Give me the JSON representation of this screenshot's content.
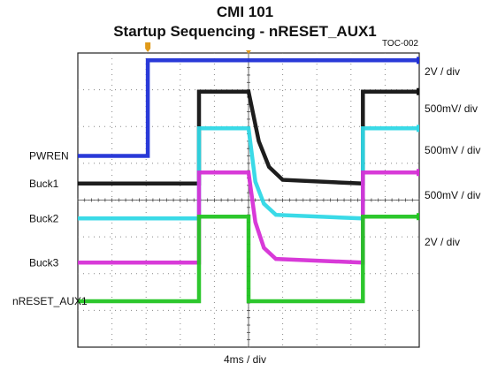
{
  "chart_data": {
    "type": "line",
    "title": "CMI  101",
    "subtitle": "Startup Sequencing - nRESET_AUX1",
    "tag": "TOC-002",
    "xlabel": "4ms / div",
    "x_divisions": 10,
    "y_divisions": 8,
    "grid": true,
    "x_unit": "div",
    "series": [
      {
        "name": "PWREN",
        "scale": "2V / div",
        "color": "#1f2fd6",
        "x": [
          0,
          2.05,
          2.05,
          10
        ],
        "y": [
          5.2,
          5.2,
          7.8,
          7.8
        ]
      },
      {
        "name": "Buck1",
        "scale": "500mV/ div",
        "color": "#111111",
        "x": [
          0,
          3.55,
          3.55,
          5.0,
          5.3,
          5.6,
          6.0,
          8.35,
          8.35,
          10
        ],
        "y": [
          4.45,
          4.45,
          6.95,
          6.95,
          5.6,
          4.9,
          4.55,
          4.45,
          6.95,
          6.95
        ]
      },
      {
        "name": "Buck2",
        "scale": "500mV / div",
        "color": "#2fd8e6",
        "x": [
          0,
          3.55,
          3.55,
          5.0,
          5.2,
          5.45,
          5.8,
          8.35,
          8.35,
          10
        ],
        "y": [
          3.5,
          3.5,
          5.95,
          5.95,
          4.5,
          3.9,
          3.6,
          3.5,
          5.95,
          5.95
        ]
      },
      {
        "name": "Buck3",
        "scale": "500mV / div",
        "color": "#d62fd6",
        "x": [
          0,
          3.55,
          3.55,
          5.0,
          5.2,
          5.45,
          5.8,
          8.35,
          8.35,
          10
        ],
        "y": [
          2.3,
          2.3,
          4.75,
          4.75,
          3.4,
          2.7,
          2.4,
          2.3,
          4.75,
          4.75
        ]
      },
      {
        "name": "nRESET_AUX1",
        "scale": "2V / div",
        "color": "#22c422",
        "x": [
          0,
          3.55,
          3.55,
          5.0,
          5.0,
          8.35,
          8.35,
          10
        ],
        "y": [
          1.25,
          1.25,
          3.55,
          3.55,
          1.25,
          1.25,
          3.55,
          3.55
        ]
      }
    ]
  }
}
